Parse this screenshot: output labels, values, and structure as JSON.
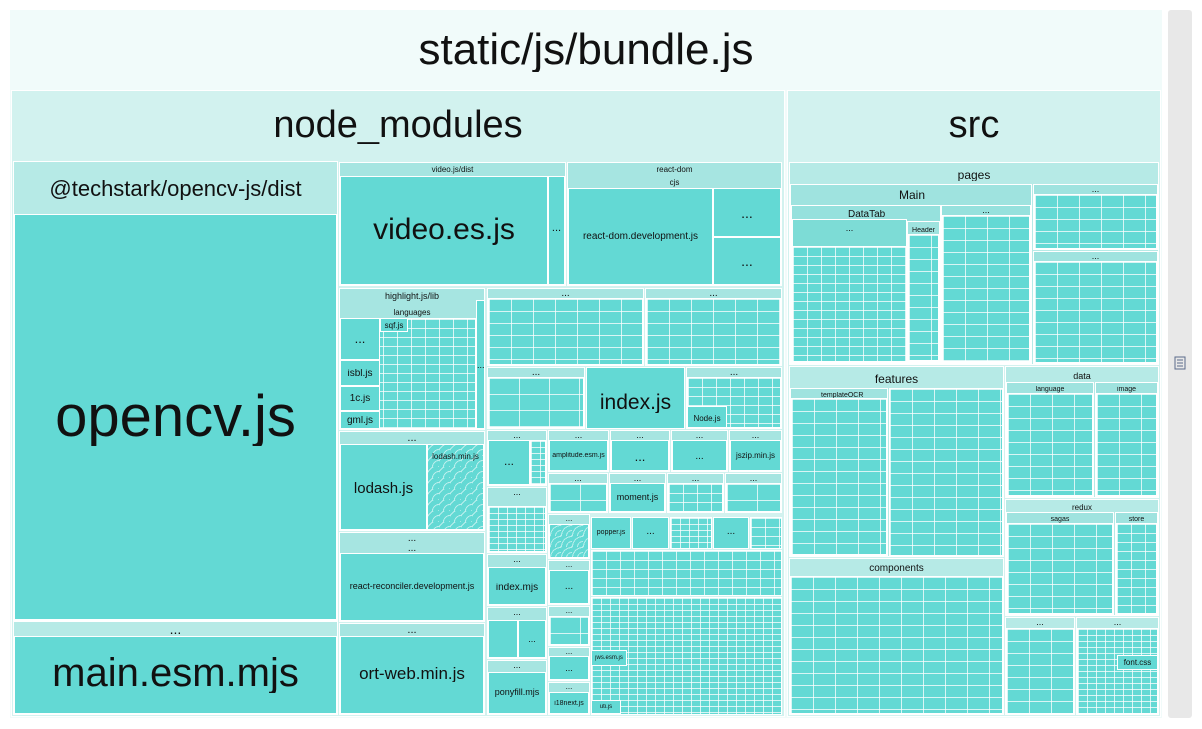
{
  "root": {
    "label": "static/js/bundle.js"
  },
  "node_modules": {
    "label": "node_modules",
    "techstark": {
      "label": "@techstark/opencv-js/dist",
      "opencv": "opencv.js"
    },
    "main_esm_group": {
      "ellipsis": "...",
      "main": "main.esm.mjs"
    },
    "videojs": {
      "label": "video.js/dist",
      "video_es": "video.es.js",
      "ellipsis": "..."
    },
    "react_dom": {
      "label": "react-dom",
      "cjs": "cjs",
      "development": "react-dom.development.js",
      "ellipsis": "..."
    },
    "highlight": {
      "label": "highlight.js/lib",
      "languages": "languages",
      "sqf": "sqf.js",
      "isbl": "isbl.js",
      "onec": "1c.js",
      "gml": "gml.js",
      "ellipsis": "..."
    },
    "lodash": {
      "label": "lodash.js",
      "min": "lodash.min.js",
      "ellipsis": "..."
    },
    "react_reconciler": {
      "label": "react-reconciler.development.js",
      "ellipsis": "..."
    },
    "ort": {
      "label": "ort-web.min.js",
      "ellipsis": "..."
    },
    "index_js": "index.js",
    "node_js": "Node.js",
    "amplitude": "amplitude.esm.js",
    "jszip": "jszip.min.js",
    "moment": "moment.js",
    "popper": "popper.js",
    "index_mjs": "index.mjs",
    "ponyfill": "ponyfill.mjs",
    "i18next": "i18next.js",
    "jws": "jws.esm.js",
    "uti": "uti.js",
    "ellipsis": "..."
  },
  "src": {
    "label": "src",
    "pages": {
      "label": "pages",
      "main": "Main",
      "datatab": "DataTab",
      "header": "Header",
      "ellipsis": "..."
    },
    "features": {
      "label": "features",
      "templateOCR": "templateOCR"
    },
    "data": {
      "label": "data",
      "language": "language",
      "image": "image"
    },
    "redux": {
      "label": "redux",
      "sagas": "sagas",
      "store": "store"
    },
    "components": {
      "label": "components"
    },
    "font_css": "font.css",
    "ellipsis": "..."
  },
  "colors": {
    "leaf": "#63d9d4",
    "group": "#d4f2f0",
    "root": "#f1fbfa",
    "scrollbar": "#e8e8e8"
  }
}
